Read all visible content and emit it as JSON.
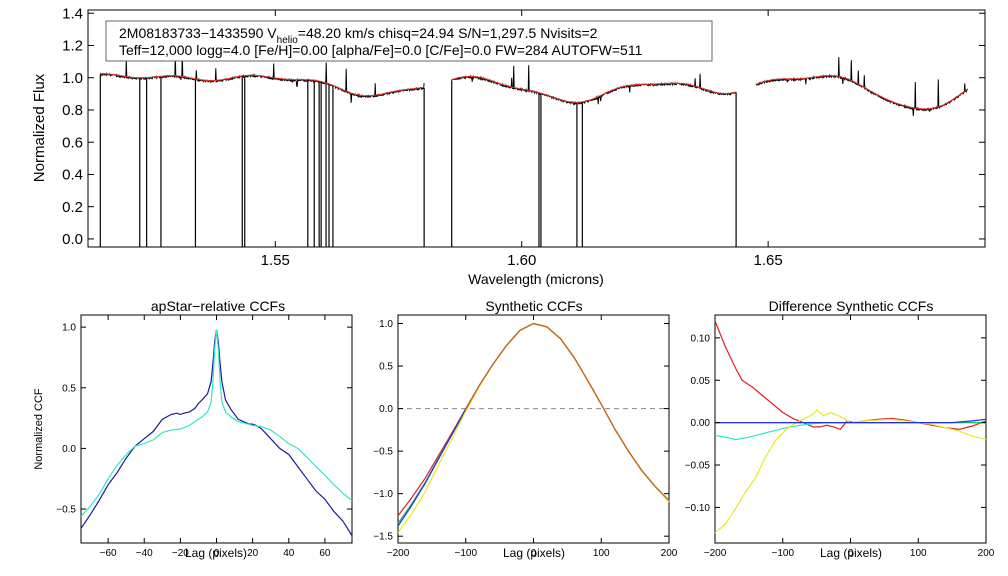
{
  "header": {
    "line1_a": "2M08183733−1433590  V",
    "line1_sub": "helio",
    "line1_b": "=48.20 km/s  chisq=24.94  S/N=1,297.5  Nvisits=2",
    "line2": "Teff=12,000 logg=4.0 [Fe/H]=0.00 [alpha/Fe]=0.0 [C/Fe]=0.0 FW=284 AUTOFW=511"
  },
  "colors": {
    "observed": "#000000",
    "model": "#e8302a",
    "navy": "#1a1a9c",
    "cyan": "#30e8c8",
    "blue": "#2030e8",
    "green": "#20c060",
    "red": "#e02020",
    "yellow": "#e8e820",
    "dashed": "#888888"
  },
  "chart_data": [
    {
      "name": "spectrum",
      "type": "line",
      "xlabel": "Wavelength (microns)",
      "ylabel": "Normalized Flux",
      "xlim": [
        1.512,
        1.694
      ],
      "ylim": [
        -0.05,
        1.42
      ],
      "xticks": [
        1.55,
        1.6,
        1.65
      ],
      "xtick_labels": [
        "1.55",
        "1.60",
        "1.65"
      ],
      "yticks": [
        0.0,
        0.2,
        0.4,
        0.6,
        0.8,
        1.0,
        1.2,
        1.4
      ],
      "ytick_labels": [
        "0.0",
        "0.2",
        "0.4",
        "0.6",
        "0.8",
        "1.0",
        "1.2",
        "1.4"
      ],
      "chips": [
        [
          1.5145,
          1.5802
        ],
        [
          1.5858,
          1.6435
        ],
        [
          1.6475,
          1.6905
        ]
      ],
      "absorption_lines": [
        [
          1.5706,
          0.1,
          0.025
        ],
        [
          1.6109,
          0.14,
          0.025
        ],
        [
          1.6408,
          0.08,
          0.02
        ],
        [
          1.6811,
          0.2,
          0.02
        ]
      ],
      "gaps_to_zero": [
        1.5145,
        1.5225,
        1.5239,
        1.5268,
        1.5338,
        1.5433,
        1.5438,
        1.5566,
        1.5579,
        1.5589,
        1.5593,
        1.5603,
        1.5609,
        1.5617,
        1.5802,
        1.5858,
        1.6035,
        1.6039,
        1.6112,
        1.6123,
        1.6435
      ],
      "series": [
        {
          "name": "observed",
          "color": "#000000"
        },
        {
          "name": "model",
          "color": "#e8302a"
        }
      ]
    },
    {
      "name": "apstar-ccf",
      "type": "line",
      "title": "apStar−relative CCFs",
      "xlabel": "Lag (pixels)",
      "ylabel": "Normalized CCF",
      "xlim": [
        -75,
        75
      ],
      "ylim": [
        -0.78,
        1.1
      ],
      "xticks": [
        -60,
        -40,
        -20,
        0,
        20,
        40,
        60
      ],
      "xtick_labels": [
        "−60",
        "−40",
        "−20",
        "0",
        "20",
        "40",
        "60"
      ],
      "yticks": [
        -0.5,
        0.0,
        0.5,
        1.0
      ],
      "ytick_labels": [
        "−0.5",
        "0.0",
        "0.5",
        "1.0"
      ],
      "series": [
        {
          "name": "visit1",
          "color": "#1a1a9c",
          "x": [
            -75,
            -70,
            -65,
            -60,
            -55,
            -50,
            -45,
            -40,
            -35,
            -30,
            -25,
            -22,
            -20,
            -18,
            -15,
            -12,
            -10,
            -8,
            -5,
            -3,
            -2,
            -1,
            0,
            1,
            2,
            3,
            5,
            8,
            10,
            12,
            15,
            18,
            20,
            22,
            25,
            30,
            35,
            40,
            45,
            50,
            55,
            60,
            65,
            70,
            75
          ],
          "y": [
            -0.66,
            -0.55,
            -0.43,
            -0.3,
            -0.2,
            -0.08,
            0.02,
            0.08,
            0.14,
            0.24,
            0.28,
            0.29,
            0.28,
            0.29,
            0.3,
            0.33,
            0.37,
            0.4,
            0.45,
            0.55,
            0.7,
            0.88,
            0.98,
            0.88,
            0.7,
            0.55,
            0.4,
            0.32,
            0.28,
            0.24,
            0.22,
            0.2,
            0.2,
            0.19,
            0.16,
            0.08,
            0.0,
            -0.05,
            -0.15,
            -0.25,
            -0.35,
            -0.42,
            -0.52,
            -0.6,
            -0.72
          ]
        },
        {
          "name": "visit2",
          "color": "#30e8c8",
          "x": [
            -75,
            -70,
            -65,
            -60,
            -55,
            -50,
            -45,
            -40,
            -35,
            -30,
            -25,
            -20,
            -15,
            -12,
            -10,
            -8,
            -5,
            -3,
            -2,
            -1,
            0,
            1,
            2,
            3,
            5,
            8,
            10,
            12,
            15,
            20,
            25,
            30,
            35,
            40,
            45,
            50,
            55,
            60,
            65,
            70,
            75
          ],
          "y": [
            -0.56,
            -0.48,
            -0.38,
            -0.25,
            -0.14,
            -0.05,
            0.02,
            0.04,
            0.07,
            0.13,
            0.15,
            0.16,
            0.19,
            0.22,
            0.24,
            0.26,
            0.3,
            0.38,
            0.55,
            0.82,
            0.98,
            0.82,
            0.55,
            0.38,
            0.3,
            0.26,
            0.24,
            0.22,
            0.21,
            0.19,
            0.18,
            0.15,
            0.1,
            0.04,
            0.0,
            -0.07,
            -0.15,
            -0.22,
            -0.3,
            -0.37,
            -0.43
          ]
        }
      ]
    },
    {
      "name": "synthetic-ccf",
      "type": "line",
      "title": "Synthetic CCFs",
      "xlabel": "Lag (pixels)",
      "ylabel": "",
      "xlim": [
        -200,
        200
      ],
      "ylim": [
        -1.58,
        1.1
      ],
      "xticks": [
        -200,
        -100,
        0,
        100,
        200
      ],
      "xtick_labels": [
        "−200",
        "−100",
        "0",
        "100",
        "200"
      ],
      "yticks": [
        -1.5,
        -1.0,
        -0.5,
        0.0,
        0.5,
        1.0
      ],
      "ytick_labels": [
        "−1.5",
        "−1.0",
        "−0.5",
        "0.0",
        "0.5",
        "1.0"
      ],
      "zero_line": 0.0,
      "series": [
        {
          "name": "red",
          "color": "#e02020",
          "x": [
            -200,
            -180,
            -160,
            -140,
            -120,
            -100,
            -80,
            -60,
            -40,
            -20,
            0,
            20,
            40,
            60,
            80,
            100,
            120,
            140,
            160,
            180,
            200
          ],
          "y": [
            -1.26,
            -1.05,
            -0.82,
            -0.55,
            -0.28,
            0.0,
            0.27,
            0.52,
            0.74,
            0.92,
            1.0,
            0.96,
            0.82,
            0.6,
            0.33,
            0.05,
            -0.24,
            -0.5,
            -0.73,
            -0.92,
            -1.08
          ]
        },
        {
          "name": "green",
          "color": "#20c060",
          "x": [
            -200,
            -180,
            -160,
            -140,
            -120,
            -100,
            -80,
            -60,
            -40,
            -20,
            0,
            20,
            40,
            60,
            80,
            100,
            120,
            140,
            160,
            180,
            200
          ],
          "y": [
            -1.35,
            -1.12,
            -0.87,
            -0.58,
            -0.3,
            -0.01,
            0.27,
            0.52,
            0.74,
            0.92,
            1.0,
            0.96,
            0.82,
            0.6,
            0.33,
            0.05,
            -0.24,
            -0.5,
            -0.73,
            -0.92,
            -1.09
          ]
        },
        {
          "name": "blue",
          "color": "#2030e8",
          "x": [
            -200,
            -180,
            -160,
            -140,
            -120,
            -100,
            -80,
            -60,
            -40,
            -20,
            0,
            20,
            40,
            60,
            80,
            100,
            120,
            140,
            160,
            180,
            200
          ],
          "y": [
            -1.38,
            -1.14,
            -0.88,
            -0.59,
            -0.3,
            -0.01,
            0.27,
            0.52,
            0.74,
            0.92,
            1.0,
            0.96,
            0.82,
            0.6,
            0.33,
            0.05,
            -0.24,
            -0.5,
            -0.73,
            -0.92,
            -1.09
          ]
        },
        {
          "name": "yellow",
          "color": "#e8e820",
          "x": [
            -200,
            -180,
            -160,
            -140,
            -120,
            -100,
            -80,
            -60,
            -40,
            -20,
            0,
            20,
            40,
            60,
            80,
            100,
            120,
            140,
            160,
            180,
            200
          ],
          "y": [
            -1.46,
            -1.24,
            -0.98,
            -0.66,
            -0.35,
            -0.03,
            0.26,
            0.52,
            0.74,
            0.92,
            1.0,
            0.96,
            0.82,
            0.6,
            0.33,
            0.05,
            -0.24,
            -0.5,
            -0.73,
            -0.92,
            -1.1
          ]
        },
        {
          "name": "orange",
          "color": "#c86414",
          "x": [
            -100,
            -80,
            -60,
            -40,
            -20,
            0,
            20,
            40,
            60,
            80,
            100,
            120,
            140,
            160,
            180,
            200
          ],
          "y": [
            -0.01,
            0.27,
            0.52,
            0.74,
            0.92,
            1.0,
            0.96,
            0.82,
            0.6,
            0.33,
            0.05,
            -0.24,
            -0.5,
            -0.73,
            -0.92,
            -1.08
          ]
        }
      ]
    },
    {
      "name": "difference-ccf",
      "type": "line",
      "title": "Difference Synthetic CCFs",
      "xlabel": "Lag (pixels)",
      "ylabel": "",
      "xlim": [
        -200,
        200
      ],
      "ylim": [
        -0.142,
        0.127
      ],
      "xticks": [
        -200,
        -100,
        0,
        100,
        200
      ],
      "xtick_labels": [
        "−200",
        "−100",
        "0",
        "100",
        "200"
      ],
      "yticks": [
        -0.1,
        -0.05,
        0.0,
        0.05,
        0.1
      ],
      "ytick_labels": [
        "−0.10",
        "−0.05",
        "0.00",
        "0.05",
        "0.10"
      ],
      "series": [
        {
          "name": "red",
          "color": "#e02020",
          "x": [
            -200,
            -185,
            -170,
            -160,
            -145,
            -130,
            -115,
            -100,
            -85,
            -70,
            -55,
            -45,
            -35,
            -25,
            -15,
            -5,
            5,
            20,
            40,
            60,
            80,
            100,
            120,
            140,
            160,
            180,
            200
          ],
          "y": [
            0.12,
            0.09,
            0.065,
            0.05,
            0.042,
            0.032,
            0.022,
            0.012,
            0.005,
            0.0,
            -0.005,
            -0.005,
            -0.003,
            -0.005,
            -0.008,
            0.002,
            0.0,
            0.002,
            0.004,
            0.005,
            0.003,
            0.0,
            -0.003,
            -0.006,
            -0.008,
            -0.004,
            0.002
          ]
        },
        {
          "name": "cyan",
          "color": "#30e8c8",
          "x": [
            -200,
            -185,
            -170,
            -155,
            -140,
            -125,
            -110,
            -95,
            -80,
            -65,
            -50,
            -35,
            -20,
            0,
            50,
            100,
            150,
            200
          ],
          "y": [
            -0.015,
            -0.017,
            -0.02,
            -0.018,
            -0.015,
            -0.012,
            -0.009,
            -0.006,
            -0.004,
            -0.002,
            -0.001,
            0.0,
            0.0,
            0.0,
            0.0,
            0.0,
            0.0,
            0.0
          ]
        },
        {
          "name": "yellow",
          "color": "#e8e820",
          "x": [
            -200,
            -185,
            -170,
            -155,
            -140,
            -125,
            -110,
            -95,
            -80,
            -65,
            -55,
            -50,
            -45,
            -40,
            -30,
            -20,
            -10,
            0,
            20,
            40,
            60,
            80,
            100,
            120,
            140,
            160,
            180,
            200
          ],
          "y": [
            -0.13,
            -0.12,
            -0.102,
            -0.082,
            -0.065,
            -0.04,
            -0.02,
            -0.008,
            0.0,
            0.006,
            0.01,
            0.015,
            0.012,
            0.008,
            0.012,
            0.009,
            0.005,
            0.0,
            0.002,
            0.003,
            0.004,
            0.002,
            0.0,
            -0.002,
            -0.006,
            -0.01,
            -0.016,
            -0.02
          ]
        },
        {
          "name": "green",
          "color": "#20c060",
          "x": [
            -200,
            -100,
            0,
            100,
            200
          ],
          "y": [
            0.0,
            0.0,
            0.0,
            0.0,
            0.0
          ]
        },
        {
          "name": "blue",
          "color": "#2030e8",
          "x": [
            -200,
            -100,
            0,
            100,
            150,
            180,
            200
          ],
          "y": [
            0.0,
            0.0,
            0.0,
            0.0,
            0.0,
            0.002,
            0.004
          ]
        }
      ]
    }
  ]
}
